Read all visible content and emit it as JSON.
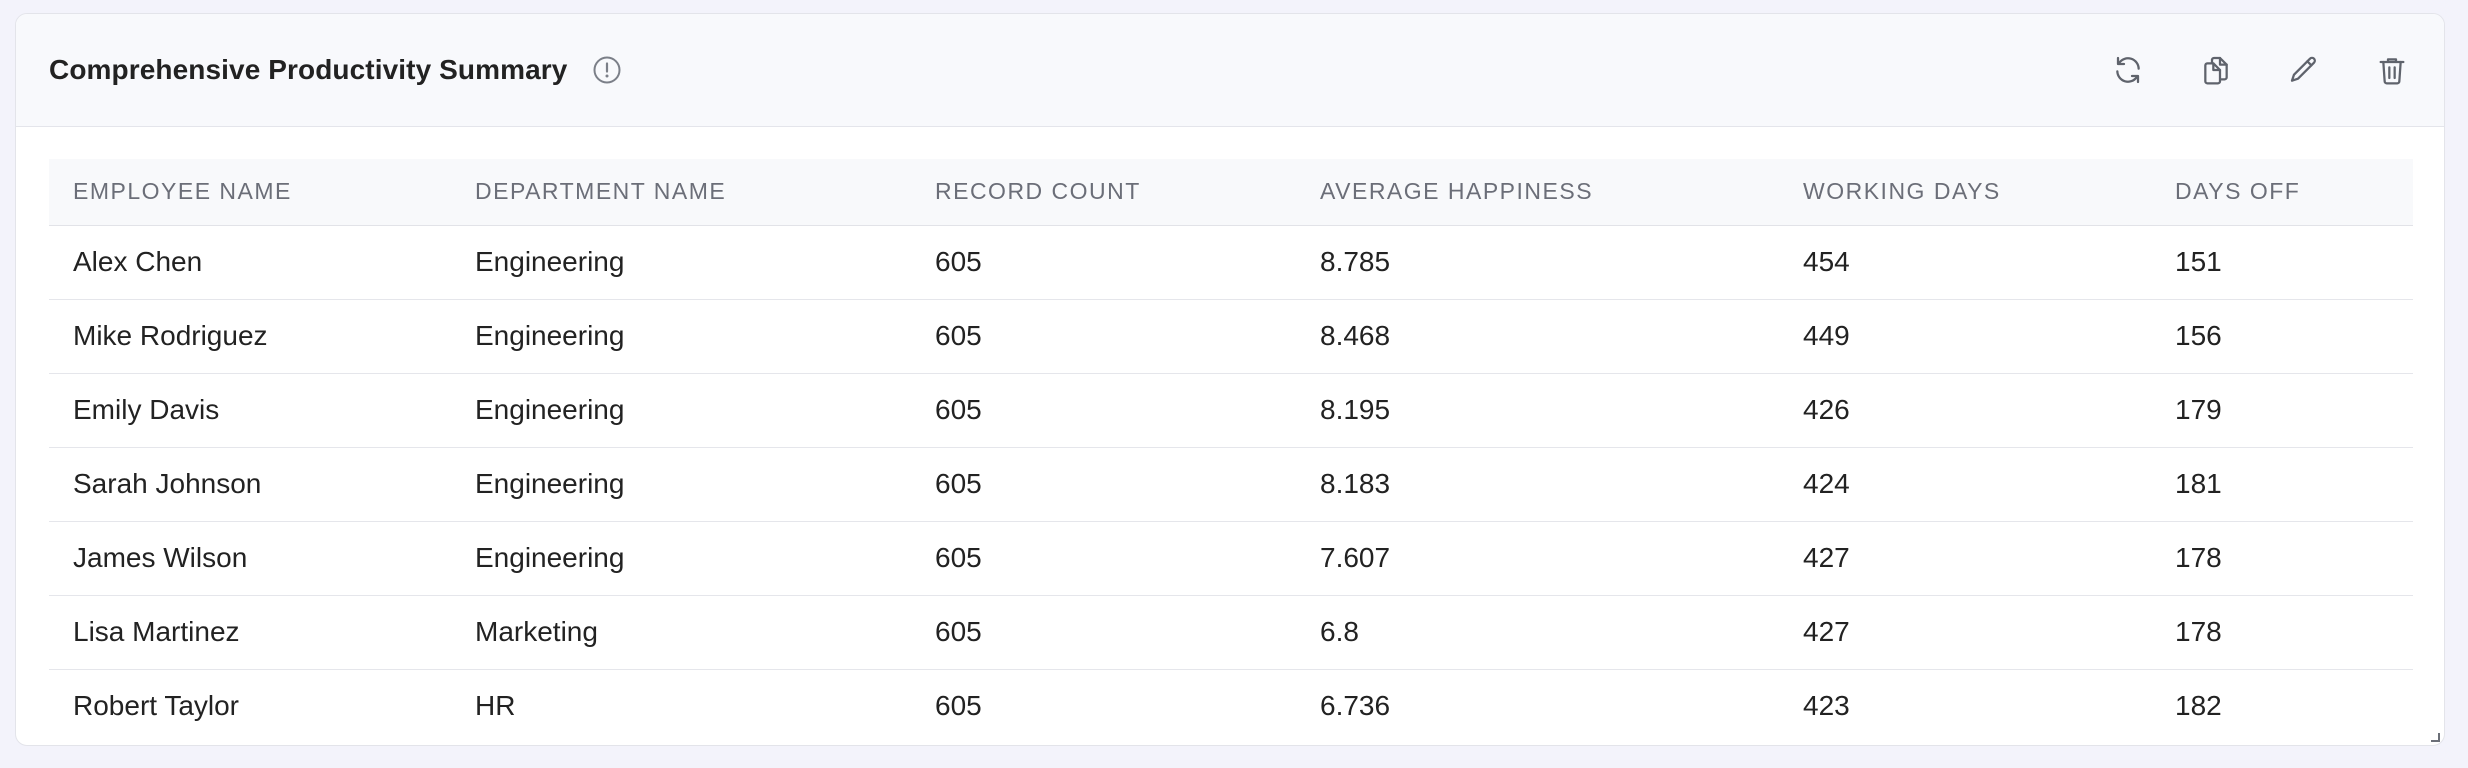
{
  "header": {
    "title": "Comprehensive Productivity Summary",
    "icons": {
      "info": "info-circle-icon",
      "refresh": "refresh-icon",
      "copy": "copy-icon",
      "edit": "pencil-icon",
      "delete": "trash-icon"
    }
  },
  "table": {
    "columns": [
      "EMPLOYEE NAME",
      "DEPARTMENT NAME",
      "RECORD COUNT",
      "AVERAGE HAPPINESS",
      "WORKING DAYS",
      "DAYS OFF"
    ],
    "rows": [
      [
        "Alex Chen",
        "Engineering",
        "605",
        "8.785",
        "454",
        "151"
      ],
      [
        "Mike Rodriguez",
        "Engineering",
        "605",
        "8.468",
        "449",
        "156"
      ],
      [
        "Emily Davis",
        "Engineering",
        "605",
        "8.195",
        "426",
        "179"
      ],
      [
        "Sarah Johnson",
        "Engineering",
        "605",
        "8.183",
        "424",
        "181"
      ],
      [
        "James Wilson",
        "Engineering",
        "605",
        "7.607",
        "427",
        "178"
      ],
      [
        "Lisa Martinez",
        "Marketing",
        "605",
        "6.8",
        "427",
        "178"
      ],
      [
        "Robert Taylor",
        "HR",
        "605",
        "6.736",
        "423",
        "182"
      ]
    ]
  },
  "colors": {
    "icon": "#6b6f78",
    "border": "#e3e4ea",
    "header_bg": "#f8f9fc"
  }
}
